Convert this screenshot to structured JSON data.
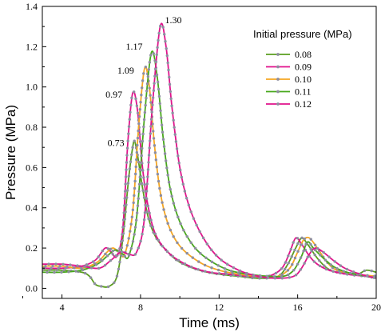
{
  "chart_data": {
    "type": "line",
    "title": "",
    "xlabel": "Time (ms)",
    "ylabel": "Pressure (MPa)",
    "xlim": [
      3,
      20
    ],
    "ylim": [
      -0.05,
      1.4
    ],
    "x_ticks": [
      "4",
      "8",
      "12",
      "16",
      "20"
    ],
    "y_ticks": [
      "0.0",
      "0.2",
      "0.4",
      "0.6",
      "0.8",
      "1.0",
      "1.2",
      "1.4"
    ],
    "legend": {
      "title": "Initial pressure (MPa)",
      "placement": "top-right"
    },
    "annotations": [
      "0.73",
      "0.97",
      "1.09",
      "1.17",
      "1.30"
    ],
    "series": [
      {
        "name": "0.08",
        "color": "#5a9e1e",
        "points": [
          [
            3,
            0.09
          ],
          [
            4,
            0.09
          ],
          [
            5,
            0.08
          ],
          [
            5.4,
            0.06
          ],
          [
            5.7,
            0.02
          ],
          [
            6,
            0.01
          ],
          [
            6.4,
            0.01
          ],
          [
            6.8,
            0.06
          ],
          [
            7.1,
            0.25
          ],
          [
            7.4,
            0.55
          ],
          [
            7.6,
            0.7
          ],
          [
            7.7,
            0.73
          ],
          [
            7.85,
            0.66
          ],
          [
            8.1,
            0.5
          ],
          [
            8.4,
            0.35
          ],
          [
            8.8,
            0.25
          ],
          [
            9.4,
            0.18
          ],
          [
            10,
            0.13
          ],
          [
            11,
            0.09
          ],
          [
            12,
            0.07
          ],
          [
            13,
            0.06
          ],
          [
            14,
            0.05
          ],
          [
            15,
            0.06
          ],
          [
            15.5,
            0.12
          ],
          [
            15.9,
            0.2
          ],
          [
            16.2,
            0.25
          ],
          [
            16.5,
            0.22
          ],
          [
            17,
            0.15
          ],
          [
            17.5,
            0.1
          ],
          [
            18,
            0.08
          ],
          [
            19,
            0.07
          ],
          [
            19.5,
            0.09
          ],
          [
            20,
            0.08
          ]
        ]
      },
      {
        "name": "0.09",
        "color": "#e0138c",
        "points": [
          [
            3,
            0.1
          ],
          [
            4,
            0.1
          ],
          [
            5,
            0.11
          ],
          [
            5.7,
            0.14
          ],
          [
            6.2,
            0.2
          ],
          [
            6.5,
            0.18
          ],
          [
            6.8,
            0.16
          ],
          [
            7.1,
            0.3
          ],
          [
            7.35,
            0.72
          ],
          [
            7.6,
            0.97
          ],
          [
            7.85,
            0.88
          ],
          [
            8.1,
            0.6
          ],
          [
            8.4,
            0.4
          ],
          [
            8.8,
            0.26
          ],
          [
            9.5,
            0.17
          ],
          [
            10.5,
            0.11
          ],
          [
            11.5,
            0.08
          ],
          [
            12.5,
            0.07
          ],
          [
            13.5,
            0.06
          ],
          [
            14.5,
            0.06
          ],
          [
            15.2,
            0.1
          ],
          [
            15.6,
            0.18
          ],
          [
            15.9,
            0.25
          ],
          [
            16.2,
            0.22
          ],
          [
            16.6,
            0.16
          ],
          [
            17,
            0.12
          ],
          [
            17.6,
            0.09
          ],
          [
            18.5,
            0.07
          ],
          [
            19.5,
            0.06
          ],
          [
            20,
            0.06
          ]
        ]
      },
      {
        "name": "0.10",
        "color": "#f5a623",
        "points": [
          [
            3,
            0.11
          ],
          [
            4,
            0.11
          ],
          [
            5,
            0.1
          ],
          [
            5.8,
            0.13
          ],
          [
            6.3,
            0.18
          ],
          [
            6.6,
            0.2
          ],
          [
            6.9,
            0.18
          ],
          [
            7.2,
            0.17
          ],
          [
            7.6,
            0.38
          ],
          [
            7.9,
            0.8
          ],
          [
            8.2,
            1.09
          ],
          [
            8.45,
            1.0
          ],
          [
            8.7,
            0.72
          ],
          [
            9,
            0.48
          ],
          [
            9.4,
            0.32
          ],
          [
            10,
            0.21
          ],
          [
            11,
            0.13
          ],
          [
            12,
            0.09
          ],
          [
            13,
            0.07
          ],
          [
            14,
            0.06
          ],
          [
            15,
            0.06
          ],
          [
            15.6,
            0.1
          ],
          [
            16,
            0.18
          ],
          [
            16.3,
            0.24
          ],
          [
            16.6,
            0.25
          ],
          [
            17,
            0.2
          ],
          [
            17.5,
            0.13
          ],
          [
            18,
            0.09
          ],
          [
            19,
            0.07
          ],
          [
            20,
            0.06
          ]
        ]
      },
      {
        "name": "0.11",
        "color": "#48a81c",
        "points": [
          [
            3,
            0.08
          ],
          [
            4,
            0.08
          ],
          [
            5,
            0.09
          ],
          [
            5.8,
            0.12
          ],
          [
            6.3,
            0.16
          ],
          [
            6.7,
            0.19
          ],
          [
            7.1,
            0.17
          ],
          [
            7.4,
            0.16
          ],
          [
            7.8,
            0.35
          ],
          [
            8.2,
            0.85
          ],
          [
            8.55,
            1.17
          ],
          [
            8.85,
            1.05
          ],
          [
            9.15,
            0.75
          ],
          [
            9.5,
            0.5
          ],
          [
            10,
            0.33
          ],
          [
            10.7,
            0.21
          ],
          [
            11.5,
            0.14
          ],
          [
            12.5,
            0.09
          ],
          [
            13.5,
            0.07
          ],
          [
            14.5,
            0.06
          ],
          [
            15.3,
            0.06
          ],
          [
            15.8,
            0.09
          ],
          [
            16.2,
            0.16
          ],
          [
            16.5,
            0.23
          ],
          [
            16.8,
            0.2
          ],
          [
            17.2,
            0.16
          ],
          [
            17.8,
            0.11
          ],
          [
            18.5,
            0.08
          ],
          [
            19.5,
            0.06
          ],
          [
            20,
            0.05
          ]
        ]
      },
      {
        "name": "0.12",
        "color": "#e0138c",
        "points": [
          [
            3,
            0.12
          ],
          [
            4,
            0.12
          ],
          [
            5,
            0.11
          ],
          [
            5.9,
            0.1
          ],
          [
            6.5,
            0.14
          ],
          [
            7,
            0.18
          ],
          [
            7.4,
            0.17
          ],
          [
            7.8,
            0.18
          ],
          [
            8.2,
            0.35
          ],
          [
            8.6,
            0.9
          ],
          [
            9,
            1.3
          ],
          [
            9.3,
            1.2
          ],
          [
            9.6,
            0.9
          ],
          [
            10,
            0.6
          ],
          [
            10.5,
            0.4
          ],
          [
            11.2,
            0.25
          ],
          [
            12,
            0.15
          ],
          [
            13,
            0.09
          ],
          [
            14,
            0.06
          ],
          [
            15,
            0.05
          ],
          [
            15.8,
            0.06
          ],
          [
            16.2,
            0.1
          ],
          [
            16.6,
            0.17
          ],
          [
            16.9,
            0.2
          ],
          [
            17.3,
            0.18
          ],
          [
            17.8,
            0.14
          ],
          [
            18.4,
            0.1
          ],
          [
            19.2,
            0.07
          ],
          [
            20,
            0.05
          ]
        ]
      }
    ]
  }
}
